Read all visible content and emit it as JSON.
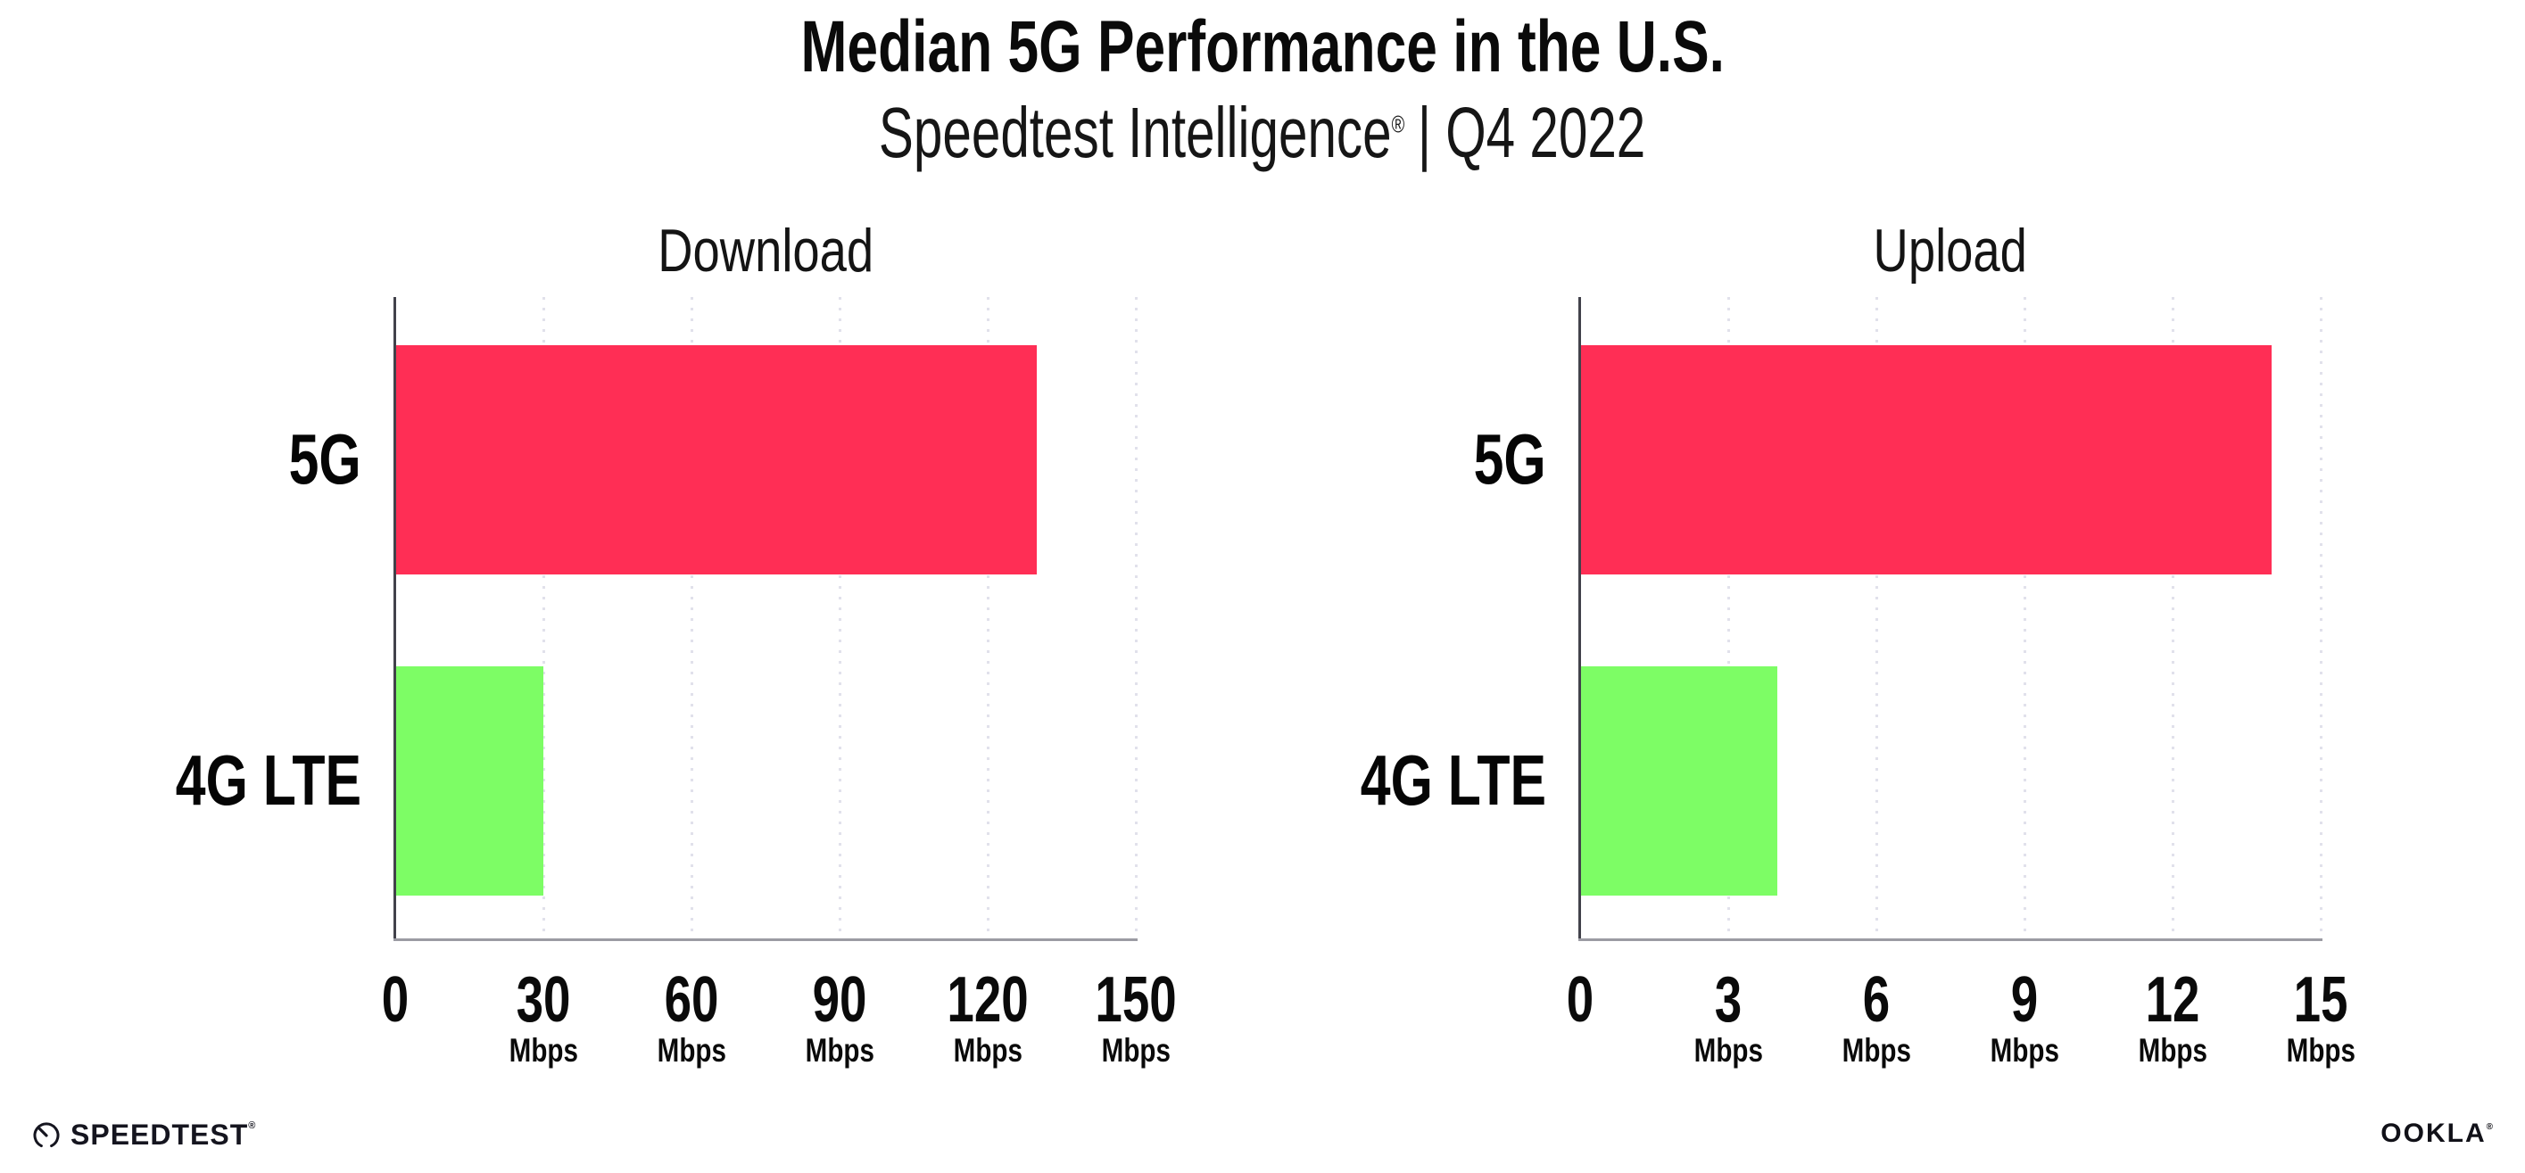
{
  "header": {
    "title": "Median 5G Performance in the U.S.",
    "subtitle_brand": "Speedtest Intelligence",
    "subtitle_reg": "®",
    "subtitle_rest": "| Q4 2022"
  },
  "chart_data": [
    {
      "type": "bar",
      "orientation": "horizontal",
      "title": "Download",
      "categories": [
        "5G",
        "4G LTE"
      ],
      "values": [
        130,
        30
      ],
      "unit": "Mbps",
      "xlabel": "",
      "ylabel": "",
      "xlim": [
        0,
        150
      ],
      "ticks": [
        "0",
        "30",
        "60",
        "90",
        "120",
        "150"
      ],
      "grid": "dotted-vertical",
      "bar_colors": [
        "#FF2E55",
        "#7DFD65"
      ]
    },
    {
      "type": "bar",
      "orientation": "horizontal",
      "title": "Upload",
      "categories": [
        "5G",
        "4G LTE"
      ],
      "values": [
        14,
        4
      ],
      "unit": "Mbps",
      "xlabel": "",
      "ylabel": "",
      "xlim": [
        0,
        15
      ],
      "ticks": [
        "0",
        "3",
        "6",
        "9",
        "12",
        "15"
      ],
      "grid": "dotted-vertical",
      "bar_colors": [
        "#FF2E55",
        "#7DFD65"
      ]
    }
  ],
  "colors": {
    "bar_5g": "#FF2E55",
    "bar_4g_lte": "#7DFD65",
    "axis_spine": "#42424b",
    "axis_baseline": "#9b9ba3",
    "gridline": "#e1e1eb",
    "text": "#0a0a0a"
  },
  "footer": {
    "speedtest_label": "SPEEDTEST",
    "speedtest_reg": "®",
    "ookla_label": "OOKLA",
    "ookla_reg": "®"
  }
}
